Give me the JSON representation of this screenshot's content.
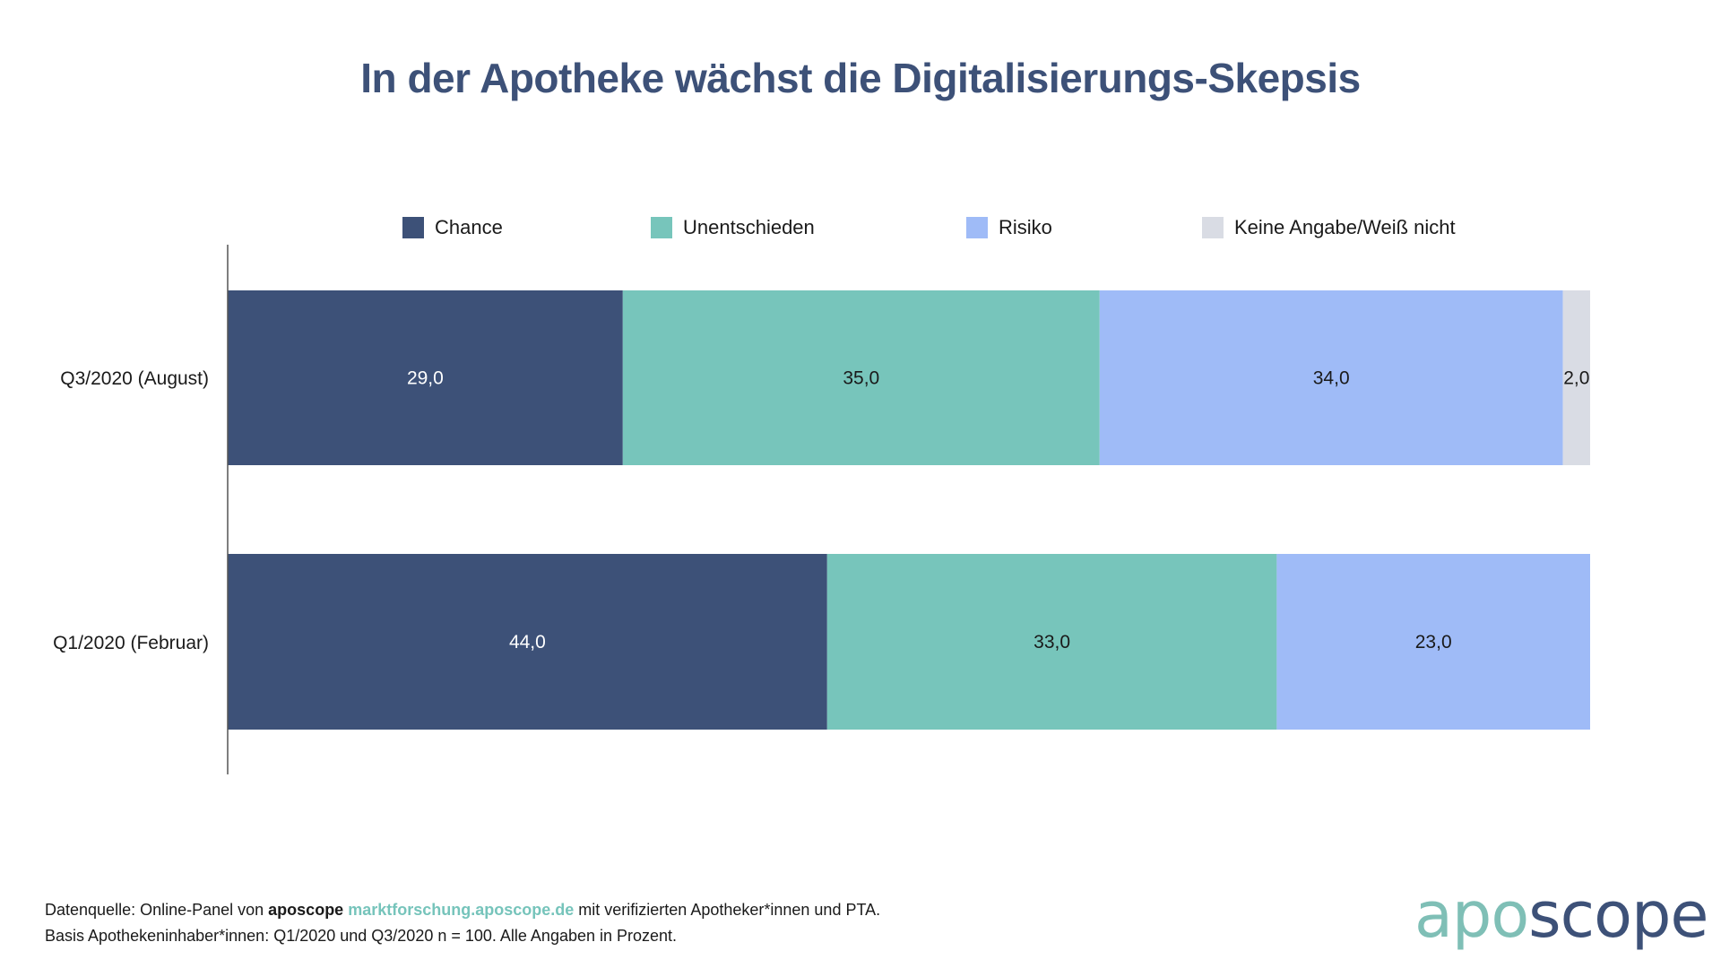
{
  "title": "In der Apotheke wächst die Digitalisierungs-Skepsis",
  "legend": [
    {
      "label": "Chance",
      "color": "#3d5178"
    },
    {
      "label": "Unentschieden",
      "color": "#77c5bb"
    },
    {
      "label": "Risiko",
      "color": "#9fbbf7"
    },
    {
      "label": "Keine Angabe/Weiß nicht",
      "color": "#d9dce4"
    }
  ],
  "chart_data": {
    "type": "bar",
    "orientation": "horizontal",
    "stacked": true,
    "title": "In der Apotheke wächst die Digitalisierungs-Skepsis",
    "xlabel": "",
    "ylabel": "",
    "xlim": [
      0,
      100
    ],
    "grid": false,
    "legend_position": "top",
    "categories": [
      "Q3/2020 (August)",
      "Q1/2020 (Februar)"
    ],
    "series": [
      {
        "name": "Chance",
        "color": "#3d5178",
        "label_color": "#ffffff",
        "values": [
          29.0,
          44.0
        ],
        "labels": [
          "29,0",
          "44,0"
        ]
      },
      {
        "name": "Unentschieden",
        "color": "#77c5bb",
        "label_color": "#1a1a1a",
        "values": [
          35.0,
          33.0
        ],
        "labels": [
          "35,0",
          "33,0"
        ]
      },
      {
        "name": "Risiko",
        "color": "#9fbbf7",
        "label_color": "#1a1a1a",
        "values": [
          34.0,
          23.0
        ],
        "labels": [
          "34,0",
          "23,0"
        ]
      },
      {
        "name": "Keine Angabe/Weiß nicht",
        "color": "#d9dce4",
        "label_color": "#1a1a1a",
        "values": [
          2.0,
          0.0
        ],
        "labels": [
          "2,0",
          ""
        ]
      }
    ]
  },
  "footer": {
    "line1_prefix": "Datenquelle: Online-Panel von ",
    "line1_brand": "aposcope",
    "line1_link": "marktforschung.aposcope.de",
    "line1_suffix": " mit verifizierten Apotheker*innen und PTA.",
    "line2": "Basis Apothekeninhaber*innen: Q1/2020 und Q3/2020 n = 100. Alle Angaben in Prozent."
  },
  "logo": {
    "part1": "apo",
    "part2": "scope"
  }
}
